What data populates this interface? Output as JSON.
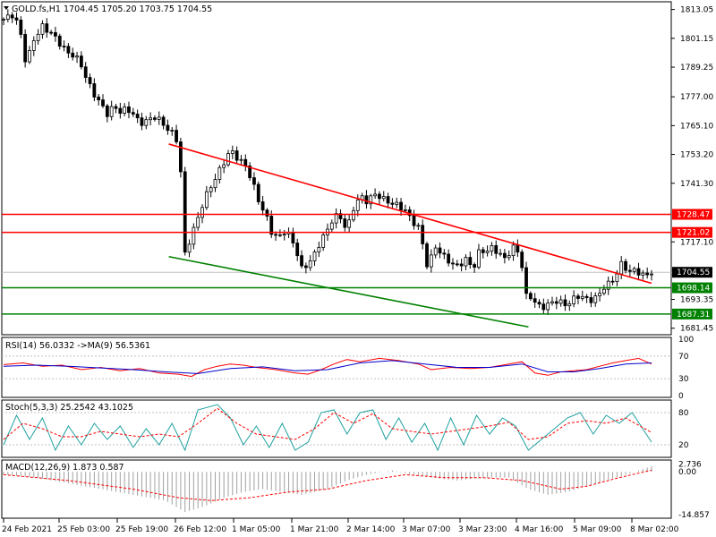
{
  "chart_data": {
    "type": "candlestick",
    "symbol_header": "GOLD.fs,H1  1704.45 1705.20 1703.75 1704.55",
    "x_ticks": [
      "24 Feb 2021",
      "25 Feb 03:00",
      "25 Feb 19:00",
      "26 Feb 12:00",
      "1 Mar 05:00",
      "1 Mar 21:00",
      "2 Mar 14:00",
      "3 Mar 07:00",
      "3 Mar 23:00",
      "4 Mar 16:00",
      "5 Mar 09:00",
      "8 Mar 02:00"
    ],
    "price_ticks": [
      "1813.05",
      "1801.15",
      "1789.25",
      "1777.00",
      "1765.10",
      "1753.20",
      "1741.30",
      "1717.10",
      "1693.35",
      "1681.45"
    ],
    "ylim": [
      1679.5,
      1815.5
    ],
    "current_price": {
      "label": "1704.55",
      "value": 1704.55
    },
    "resistance_levels": [
      {
        "label": "1728.47",
        "value": 1728.47,
        "color": "#ff0000"
      },
      {
        "label": "1721.02",
        "value": 1721.02,
        "color": "#ff0000"
      }
    ],
    "support_levels": [
      {
        "label": "1698.14",
        "value": 1698.14,
        "color": "#008000"
      },
      {
        "label": "1687.31",
        "value": 1687.31,
        "color": "#008000"
      }
    ],
    "trendlines": [
      {
        "from": [
          0.255,
          1757.5
        ],
        "to": [
          1.0,
          1700.0
        ],
        "color": "#ff0000"
      },
      {
        "from": [
          0.255,
          1711.0
        ],
        "to": [
          0.81,
          1682.0
        ],
        "color": "#008000"
      }
    ],
    "close_path": [
      [
        0,
        1809
      ],
      [
        0.015,
        1811
      ],
      [
        0.025,
        1805
      ],
      [
        0.035,
        1790
      ],
      [
        0.045,
        1800
      ],
      [
        0.06,
        1806
      ],
      [
        0.075,
        1803
      ],
      [
        0.09,
        1798
      ],
      [
        0.1,
        1795
      ],
      [
        0.11,
        1794
      ],
      [
        0.12,
        1790
      ],
      [
        0.13,
        1783
      ],
      [
        0.14,
        1778
      ],
      [
        0.15,
        1774
      ],
      [
        0.16,
        1770
      ],
      [
        0.17,
        1773
      ],
      [
        0.18,
        1771
      ],
      [
        0.19,
        1772
      ],
      [
        0.2,
        1770
      ],
      [
        0.21,
        1766
      ],
      [
        0.22,
        1767
      ],
      [
        0.235,
        1769
      ],
      [
        0.245,
        1766
      ],
      [
        0.26,
        1762
      ],
      [
        0.27,
        1758
      ],
      [
        0.275,
        1740
      ],
      [
        0.28,
        1712
      ],
      [
        0.29,
        1720
      ],
      [
        0.3,
        1727
      ],
      [
        0.31,
        1735
      ],
      [
        0.32,
        1740
      ],
      [
        0.33,
        1745
      ],
      [
        0.34,
        1750
      ],
      [
        0.35,
        1755
      ],
      [
        0.36,
        1752
      ],
      [
        0.375,
        1748
      ],
      [
        0.385,
        1741
      ],
      [
        0.395,
        1733
      ],
      [
        0.405,
        1728
      ],
      [
        0.415,
        1720
      ],
      [
        0.425,
        1719
      ],
      [
        0.435,
        1722
      ],
      [
        0.445,
        1718
      ],
      [
        0.455,
        1711
      ],
      [
        0.46,
        1706
      ],
      [
        0.47,
        1708
      ],
      [
        0.48,
        1712
      ],
      [
        0.49,
        1718
      ],
      [
        0.5,
        1722
      ],
      [
        0.51,
        1728
      ],
      [
        0.52,
        1727
      ],
      [
        0.53,
        1722
      ],
      [
        0.54,
        1731
      ],
      [
        0.55,
        1736
      ],
      [
        0.56,
        1734
      ],
      [
        0.575,
        1737
      ],
      [
        0.59,
        1734
      ],
      [
        0.6,
        1733
      ],
      [
        0.61,
        1732
      ],
      [
        0.62,
        1730
      ],
      [
        0.63,
        1726
      ],
      [
        0.64,
        1723
      ],
      [
        0.65,
        1713
      ],
      [
        0.655,
        1705
      ],
      [
        0.665,
        1716
      ],
      [
        0.675,
        1712
      ],
      [
        0.685,
        1710
      ],
      [
        0.695,
        1707
      ],
      [
        0.705,
        1708
      ],
      [
        0.715,
        1710
      ],
      [
        0.725,
        1706
      ],
      [
        0.735,
        1714
      ],
      [
        0.745,
        1713
      ],
      [
        0.755,
        1715
      ],
      [
        0.765,
        1712
      ],
      [
        0.775,
        1710
      ],
      [
        0.785,
        1715
      ],
      [
        0.795,
        1713
      ],
      [
        0.8,
        1707
      ],
      [
        0.805,
        1694
      ],
      [
        0.81,
        1696
      ],
      [
        0.82,
        1692
      ],
      [
        0.83,
        1690
      ],
      [
        0.84,
        1691
      ],
      [
        0.85,
        1693
      ],
      [
        0.86,
        1692
      ],
      [
        0.87,
        1691
      ],
      [
        0.885,
        1695
      ],
      [
        0.895,
        1694
      ],
      [
        0.905,
        1693
      ],
      [
        0.915,
        1694
      ],
      [
        0.925,
        1698
      ],
      [
        0.935,
        1700
      ],
      [
        0.945,
        1703
      ],
      [
        0.955,
        1709
      ],
      [
        0.965,
        1704
      ],
      [
        0.975,
        1706
      ],
      [
        0.985,
        1703
      ],
      [
        1.0,
        1704.5
      ]
    ],
    "rsi": {
      "label": "RSI(14) 56.0332  ->MA(9) 56.5361",
      "ticks": [
        "100",
        "70",
        "30",
        "0"
      ],
      "levels": [
        70,
        30
      ],
      "values": [
        [
          0,
          55
        ],
        [
          0.03,
          58
        ],
        [
          0.06,
          52
        ],
        [
          0.09,
          54
        ],
        [
          0.12,
          46
        ],
        [
          0.15,
          50
        ],
        [
          0.18,
          44
        ],
        [
          0.21,
          48
        ],
        [
          0.24,
          40
        ],
        [
          0.27,
          38
        ],
        [
          0.29,
          34
        ],
        [
          0.31,
          46
        ],
        [
          0.33,
          52
        ],
        [
          0.35,
          56
        ],
        [
          0.37,
          54
        ],
        [
          0.39,
          50
        ],
        [
          0.42,
          46
        ],
        [
          0.45,
          40
        ],
        [
          0.47,
          38
        ],
        [
          0.49,
          46
        ],
        [
          0.51,
          56
        ],
        [
          0.53,
          64
        ],
        [
          0.55,
          60
        ],
        [
          0.58,
          66
        ],
        [
          0.61,
          62
        ],
        [
          0.64,
          56
        ],
        [
          0.66,
          46
        ],
        [
          0.69,
          50
        ],
        [
          0.72,
          48
        ],
        [
          0.75,
          50
        ],
        [
          0.78,
          56
        ],
        [
          0.8,
          60
        ],
        [
          0.82,
          40
        ],
        [
          0.84,
          36
        ],
        [
          0.86,
          42
        ],
        [
          0.88,
          44
        ],
        [
          0.9,
          46
        ],
        [
          0.92,
          52
        ],
        [
          0.94,
          58
        ],
        [
          0.96,
          62
        ],
        [
          0.98,
          66
        ],
        [
          1.0,
          56
        ]
      ],
      "ma": [
        [
          0,
          52
        ],
        [
          0.05,
          54
        ],
        [
          0.1,
          52
        ],
        [
          0.15,
          49
        ],
        [
          0.2,
          46
        ],
        [
          0.25,
          42
        ],
        [
          0.3,
          39
        ],
        [
          0.35,
          48
        ],
        [
          0.4,
          51
        ],
        [
          0.45,
          44
        ],
        [
          0.5,
          46
        ],
        [
          0.55,
          58
        ],
        [
          0.6,
          62
        ],
        [
          0.65,
          56
        ],
        [
          0.7,
          50
        ],
        [
          0.75,
          50
        ],
        [
          0.8,
          56
        ],
        [
          0.84,
          42
        ],
        [
          0.88,
          42
        ],
        [
          0.92,
          48
        ],
        [
          0.96,
          56
        ],
        [
          1.0,
          58
        ]
      ]
    },
    "stoch": {
      "label": "Stoch(5,3,3) 25.2542 43.1025",
      "ticks": [
        "80",
        "20"
      ],
      "levels": [
        80,
        20
      ],
      "k": [
        [
          0,
          20
        ],
        [
          0.02,
          75
        ],
        [
          0.04,
          30
        ],
        [
          0.06,
          70
        ],
        [
          0.08,
          10
        ],
        [
          0.1,
          55
        ],
        [
          0.12,
          20
        ],
        [
          0.14,
          60
        ],
        [
          0.16,
          30
        ],
        [
          0.18,
          55
        ],
        [
          0.2,
          15
        ],
        [
          0.22,
          50
        ],
        [
          0.24,
          20
        ],
        [
          0.26,
          60
        ],
        [
          0.28,
          10
        ],
        [
          0.3,
          85
        ],
        [
          0.33,
          95
        ],
        [
          0.35,
          70
        ],
        [
          0.37,
          20
        ],
        [
          0.39,
          55
        ],
        [
          0.41,
          15
        ],
        [
          0.43,
          60
        ],
        [
          0.45,
          10
        ],
        [
          0.47,
          25
        ],
        [
          0.49,
          80
        ],
        [
          0.51,
          85
        ],
        [
          0.53,
          40
        ],
        [
          0.55,
          80
        ],
        [
          0.57,
          85
        ],
        [
          0.59,
          30
        ],
        [
          0.61,
          70
        ],
        [
          0.63,
          25
        ],
        [
          0.65,
          60
        ],
        [
          0.67,
          10
        ],
        [
          0.69,
          70
        ],
        [
          0.71,
          20
        ],
        [
          0.73,
          75
        ],
        [
          0.75,
          40
        ],
        [
          0.77,
          70
        ],
        [
          0.79,
          55
        ],
        [
          0.81,
          10
        ],
        [
          0.83,
          30
        ],
        [
          0.85,
          50
        ],
        [
          0.87,
          70
        ],
        [
          0.89,
          80
        ],
        [
          0.91,
          40
        ],
        [
          0.93,
          75
        ],
        [
          0.95,
          60
        ],
        [
          0.97,
          80
        ],
        [
          1.0,
          25
        ]
      ],
      "d": [
        [
          0,
          30
        ],
        [
          0.03,
          60
        ],
        [
          0.06,
          50
        ],
        [
          0.09,
          35
        ],
        [
          0.12,
          35
        ],
        [
          0.15,
          45
        ],
        [
          0.18,
          40
        ],
        [
          0.21,
          35
        ],
        [
          0.24,
          40
        ],
        [
          0.27,
          35
        ],
        [
          0.3,
          60
        ],
        [
          0.33,
          88
        ],
        [
          0.36,
          60
        ],
        [
          0.39,
          40
        ],
        [
          0.42,
          35
        ],
        [
          0.45,
          30
        ],
        [
          0.48,
          50
        ],
        [
          0.51,
          80
        ],
        [
          0.54,
          60
        ],
        [
          0.57,
          78
        ],
        [
          0.6,
          50
        ],
        [
          0.63,
          45
        ],
        [
          0.66,
          40
        ],
        [
          0.69,
          45
        ],
        [
          0.72,
          50
        ],
        [
          0.75,
          55
        ],
        [
          0.78,
          62
        ],
        [
          0.81,
          30
        ],
        [
          0.84,
          35
        ],
        [
          0.87,
          60
        ],
        [
          0.9,
          65
        ],
        [
          0.93,
          60
        ],
        [
          0.96,
          70
        ],
        [
          1.0,
          43
        ]
      ]
    },
    "macd": {
      "label": "MACD(12,26,9) 1.873 0.587",
      "ticks": [
        "2.736",
        "0.00",
        "-14.857"
      ],
      "ylim": [
        -15.5,
        3.5
      ],
      "hist": [
        [
          0,
          -1
        ],
        [
          0.05,
          -2
        ],
        [
          0.1,
          -4
        ],
        [
          0.15,
          -6
        ],
        [
          0.2,
          -8
        ],
        [
          0.25,
          -10
        ],
        [
          0.28,
          -14
        ],
        [
          0.31,
          -12
        ],
        [
          0.34,
          -9
        ],
        [
          0.37,
          -7
        ],
        [
          0.4,
          -6
        ],
        [
          0.43,
          -7
        ],
        [
          0.46,
          -8
        ],
        [
          0.5,
          -6
        ],
        [
          0.53,
          -3
        ],
        [
          0.56,
          -1
        ],
        [
          0.6,
          0.5
        ],
        [
          0.63,
          -1
        ],
        [
          0.66,
          -2
        ],
        [
          0.7,
          -3
        ],
        [
          0.74,
          -2
        ],
        [
          0.78,
          -2
        ],
        [
          0.81,
          -6
        ],
        [
          0.84,
          -8
        ],
        [
          0.87,
          -7
        ],
        [
          0.9,
          -5
        ],
        [
          0.93,
          -3
        ],
        [
          0.96,
          -1
        ],
        [
          1.0,
          2
        ]
      ],
      "signal": [
        [
          0,
          -1
        ],
        [
          0.1,
          -3
        ],
        [
          0.2,
          -6
        ],
        [
          0.27,
          -9
        ],
        [
          0.32,
          -10
        ],
        [
          0.38,
          -9
        ],
        [
          0.44,
          -7
        ],
        [
          0.5,
          -6
        ],
        [
          0.56,
          -3
        ],
        [
          0.62,
          -1
        ],
        [
          0.68,
          -2
        ],
        [
          0.74,
          -2
        ],
        [
          0.8,
          -3
        ],
        [
          0.86,
          -6
        ],
        [
          0.9,
          -5
        ],
        [
          0.95,
          -2
        ],
        [
          1.0,
          0.6
        ]
      ]
    }
  }
}
